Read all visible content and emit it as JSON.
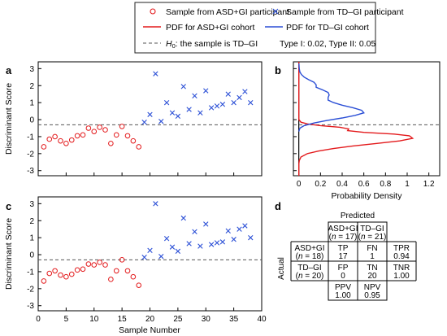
{
  "legend": {
    "items": [
      {
        "label": "Sample from ASD+GI participant",
        "symbol": "circle",
        "color": "#e31a1c"
      },
      {
        "label": "Sample from TD–GI participant",
        "symbol": "cross",
        "color": "#2b4fd6"
      },
      {
        "label": "PDF for ASD+GI cohort",
        "symbol": "line",
        "color": "#e31a1c"
      },
      {
        "label": "PDF for TD–GI cohort",
        "symbol": "line",
        "color": "#2b4fd6"
      },
      {
        "label_prefix": "H",
        "label_sub": "0",
        "label_suffix": ": the sample is TD–GI",
        "symbol": "dashed",
        "color": "#555555"
      },
      {
        "label": "Type I: 0.02, Type II: 0.05",
        "symbol": "none"
      }
    ]
  },
  "panels": {
    "a": "a",
    "b": "b",
    "c": "c",
    "d": "d"
  },
  "threshold": -0.3,
  "chart_data": [
    {
      "id": "a",
      "type": "scatter",
      "xlabel": "",
      "ylabel": "Discriminant Score",
      "xlim": [
        0,
        40
      ],
      "ylim": [
        -3.3,
        3.4
      ],
      "yticks": [
        -3,
        -2,
        -1,
        0,
        1,
        2,
        3
      ],
      "xticks": [
        0,
        5,
        10,
        15,
        20,
        25,
        30,
        35,
        40
      ],
      "xtick_labels_shown": false,
      "grid": false,
      "series": [
        {
          "name": "Sample from ASD+GI participant",
          "marker": "circle",
          "color": "#e31a1c",
          "x": [
            1,
            2,
            3,
            4,
            5,
            6,
            7,
            8,
            9,
            10,
            11,
            12,
            13,
            14,
            15,
            16,
            17,
            18
          ],
          "y": [
            -1.6,
            -1.15,
            -1.0,
            -1.25,
            -1.4,
            -1.2,
            -0.95,
            -0.9,
            -0.5,
            -0.7,
            -0.45,
            -0.6,
            -1.4,
            -0.9,
            -0.4,
            -0.95,
            -1.25,
            -1.6
          ]
        },
        {
          "name": "Sample from TD–GI participant",
          "marker": "cross",
          "color": "#2b4fd6",
          "x": [
            19,
            20,
            21,
            22,
            23,
            24,
            25,
            26,
            27,
            28,
            29,
            30,
            31,
            32,
            33,
            34,
            35,
            36,
            37,
            38
          ],
          "y": [
            -0.15,
            0.3,
            2.7,
            -0.1,
            1.0,
            0.4,
            0.2,
            1.95,
            0.6,
            1.4,
            0.4,
            1.7,
            0.7,
            0.8,
            0.9,
            1.5,
            1.0,
            1.3,
            1.65,
            1.0
          ]
        }
      ],
      "hline": -0.3
    },
    {
      "id": "b",
      "type": "line",
      "xlabel": "Probability Density",
      "ylabel": "",
      "xlim": [
        -0.05,
        1.3
      ],
      "ylim": [
        -3.3,
        3.4
      ],
      "xticks": [
        0,
        0.2,
        0.4,
        0.6,
        0.8,
        1.0,
        1.2
      ],
      "xtick_labels": [
        "0",
        "0.2",
        "0.4",
        "0.6",
        "0.8",
        "1",
        "1.2"
      ],
      "ytick_labels_shown": false,
      "series": [
        {
          "name": "PDF for ASD+GI cohort",
          "color": "#e31a1c",
          "density": [
            0,
            0,
            0,
            0,
            0,
            0,
            0,
            0.005,
            0.02,
            0.08,
            0.18,
            0.32,
            0.5,
            0.72,
            0.93,
            1.05,
            1.02,
            0.88,
            0.6,
            0.45,
            0.46,
            0.38,
            0.2,
            0.08,
            0.02,
            0,
            0,
            0,
            0,
            0,
            0,
            0,
            0,
            0,
            0,
            0,
            0,
            0,
            0,
            0,
            0,
            0,
            0,
            0,
            0,
            0,
            0,
            0,
            0,
            0,
            0,
            0,
            0,
            0,
            0,
            0,
            0,
            0,
            0,
            0,
            0,
            0,
            0,
            0,
            0,
            0,
            0,
            0
          ],
          "score": [
            -3.3,
            -3.2,
            -3.1,
            -3.0,
            -2.9,
            -2.8,
            -2.6,
            -2.4,
            -2.2,
            -2.0,
            -1.85,
            -1.7,
            -1.55,
            -1.4,
            -1.25,
            -1.1,
            -0.95,
            -0.85,
            -0.75,
            -0.65,
            -0.55,
            -0.45,
            -0.35,
            -0.25,
            -0.15,
            0,
            0.2,
            0.4,
            0.6,
            0.8,
            1.0,
            1.2,
            1.4,
            1.6,
            1.8,
            2.0,
            2.2,
            2.4,
            2.6,
            2.8,
            3.0,
            3.1,
            3.2,
            3.3,
            3.4,
            3.4,
            3.4,
            3.4,
            3.4,
            3.4,
            3.4,
            3.4,
            3.4,
            3.4,
            3.4,
            3.4,
            3.4,
            3.4,
            3.4,
            3.4,
            3.4,
            3.4,
            3.4,
            3.4,
            3.4,
            3.4,
            3.4,
            3.4
          ]
        },
        {
          "name": "PDF for TD–GI cohort",
          "color": "#2b4fd6",
          "density": [
            0,
            0.01,
            0.05,
            0.14,
            0.26,
            0.4,
            0.52,
            0.6,
            0.58,
            0.5,
            0.4,
            0.32,
            0.27,
            0.27,
            0.28,
            0.27,
            0.22,
            0.16,
            0.16,
            0.14,
            0.09,
            0.05,
            0.025,
            0.01,
            0.004,
            0.001
          ],
          "score": [
            -0.7,
            -0.5,
            -0.35,
            -0.2,
            -0.05,
            0.1,
            0.25,
            0.4,
            0.55,
            0.7,
            0.85,
            1.0,
            1.15,
            1.3,
            1.45,
            1.6,
            1.75,
            1.9,
            2.05,
            2.2,
            2.35,
            2.5,
            2.65,
            2.8,
            3.0,
            3.3
          ]
        }
      ],
      "hline": -0.3
    },
    {
      "id": "c",
      "type": "scatter",
      "xlabel": "Sample Number",
      "ylabel": "Discriminant Score",
      "xlim": [
        0,
        40
      ],
      "ylim": [
        -3.3,
        3.4
      ],
      "yticks": [
        -3,
        -2,
        -1,
        0,
        1,
        2,
        3
      ],
      "xticks": [
        0,
        5,
        10,
        15,
        20,
        25,
        30,
        35,
        40
      ],
      "xtick_labels": [
        "0",
        "5",
        "10",
        "15",
        "20",
        "25",
        "30",
        "35",
        "40"
      ],
      "grid": false,
      "series": [
        {
          "name": "Sample from ASD+GI participant",
          "marker": "circle",
          "color": "#e31a1c",
          "x": [
            1,
            2,
            3,
            4,
            5,
            6,
            7,
            8,
            9,
            10,
            11,
            12,
            13,
            14,
            15,
            16,
            17,
            18
          ],
          "y": [
            -1.55,
            -1.1,
            -0.95,
            -1.2,
            -1.3,
            -1.15,
            -0.9,
            -0.85,
            -0.55,
            -0.6,
            -0.45,
            -0.6,
            -1.45,
            -0.95,
            -0.3,
            -0.95,
            -1.3,
            -1.8
          ]
        },
        {
          "name": "Sample from TD–GI participant",
          "marker": "cross",
          "color": "#2b4fd6",
          "x": [
            19,
            20,
            21,
            22,
            23,
            24,
            25,
            26,
            27,
            28,
            29,
            30,
            31,
            32,
            33,
            34,
            35,
            36,
            37,
            38
          ],
          "y": [
            -0.15,
            0.25,
            3.0,
            -0.1,
            0.95,
            0.45,
            0.2,
            2.15,
            0.65,
            1.35,
            0.5,
            1.8,
            0.6,
            0.7,
            0.75,
            1.4,
            0.9,
            1.5,
            1.7,
            1.0
          ]
        }
      ],
      "hline": -0.3
    },
    {
      "id": "d",
      "type": "table",
      "header_top": "Predicted",
      "header_side": "Actual",
      "col_headers": [
        {
          "line1": "ASD+GI",
          "line2_prefix": "(",
          "line2_var": "n",
          "line2_suffix": " = 17)"
        },
        {
          "line1": "TD–GI",
          "line2_prefix": "(",
          "line2_var": "n",
          "line2_suffix": " = 21)"
        }
      ],
      "rows": [
        {
          "header": {
            "line1": "ASD+GI",
            "line2_prefix": "(",
            "line2_var": "n",
            "line2_suffix": " = 18)"
          },
          "cells": [
            {
              "label": "TP",
              "value": "17"
            },
            {
              "label": "FN",
              "value": "1"
            }
          ],
          "extra": {
            "label": "TPR",
            "value": "0.94"
          }
        },
        {
          "header": {
            "line1": "TD–GI",
            "line2_prefix": "(",
            "line2_var": "n",
            "line2_suffix": " = 20)"
          },
          "cells": [
            {
              "label": "FP",
              "value": "0"
            },
            {
              "label": "TN",
              "value": "20"
            }
          ],
          "extra": {
            "label": "TNR",
            "value": "1.00"
          }
        }
      ],
      "footer": [
        {
          "label": "PPV",
          "value": "1.00"
        },
        {
          "label": "NPV",
          "value": "0.95"
        }
      ]
    }
  ]
}
